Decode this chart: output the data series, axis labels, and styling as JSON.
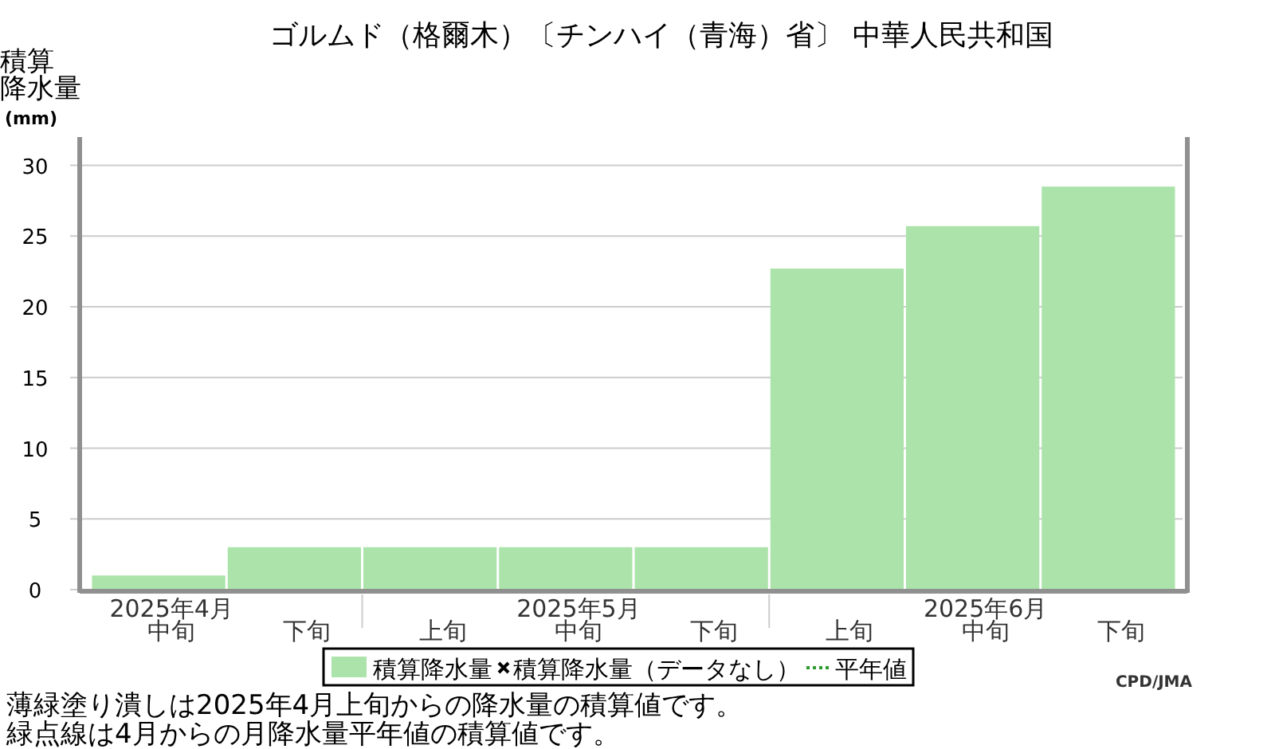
{
  "chart_data": {
    "type": "bar",
    "title": "ゴルムド（格爾木）〔チンハイ（青海）省〕 中華人民共和国",
    "ylabel": "積算降水量(mm)",
    "categories": [
      "2025年4月中旬",
      "下旬",
      "上旬",
      "2025年5月中旬",
      "下旬",
      "上旬",
      "2025年6月中旬",
      "下旬"
    ],
    "series": [
      {
        "name": "積算降水量",
        "color": "#abe3aa",
        "values": [
          1.0,
          3.0,
          3.0,
          3.0,
          3.0,
          22.7,
          25.7,
          28.5
        ]
      },
      {
        "name": "積算降水量（データなし）",
        "type": "scatter",
        "marker": "cross",
        "color": "#000000",
        "values": [
          null,
          null,
          null,
          null,
          null,
          null,
          null,
          null
        ]
      },
      {
        "name": "平年値",
        "type": "line",
        "line_style": "dotted",
        "color": "#2e9a2e",
        "values": [
          null,
          null,
          null,
          null,
          null,
          null,
          null,
          null
        ]
      }
    ],
    "ylim": [
      0,
      32
    ],
    "yticks": [
      0,
      5,
      10,
      15,
      20,
      25,
      30
    ],
    "grid": "y",
    "legend": "bottom",
    "annotations": [
      "薄緑塗り潰しは2025年4月上旬からの降水量の積算値です。",
      "緑点線は4月からの月降水量平年値の積算値です。",
      "CPD/JMA"
    ]
  }
}
